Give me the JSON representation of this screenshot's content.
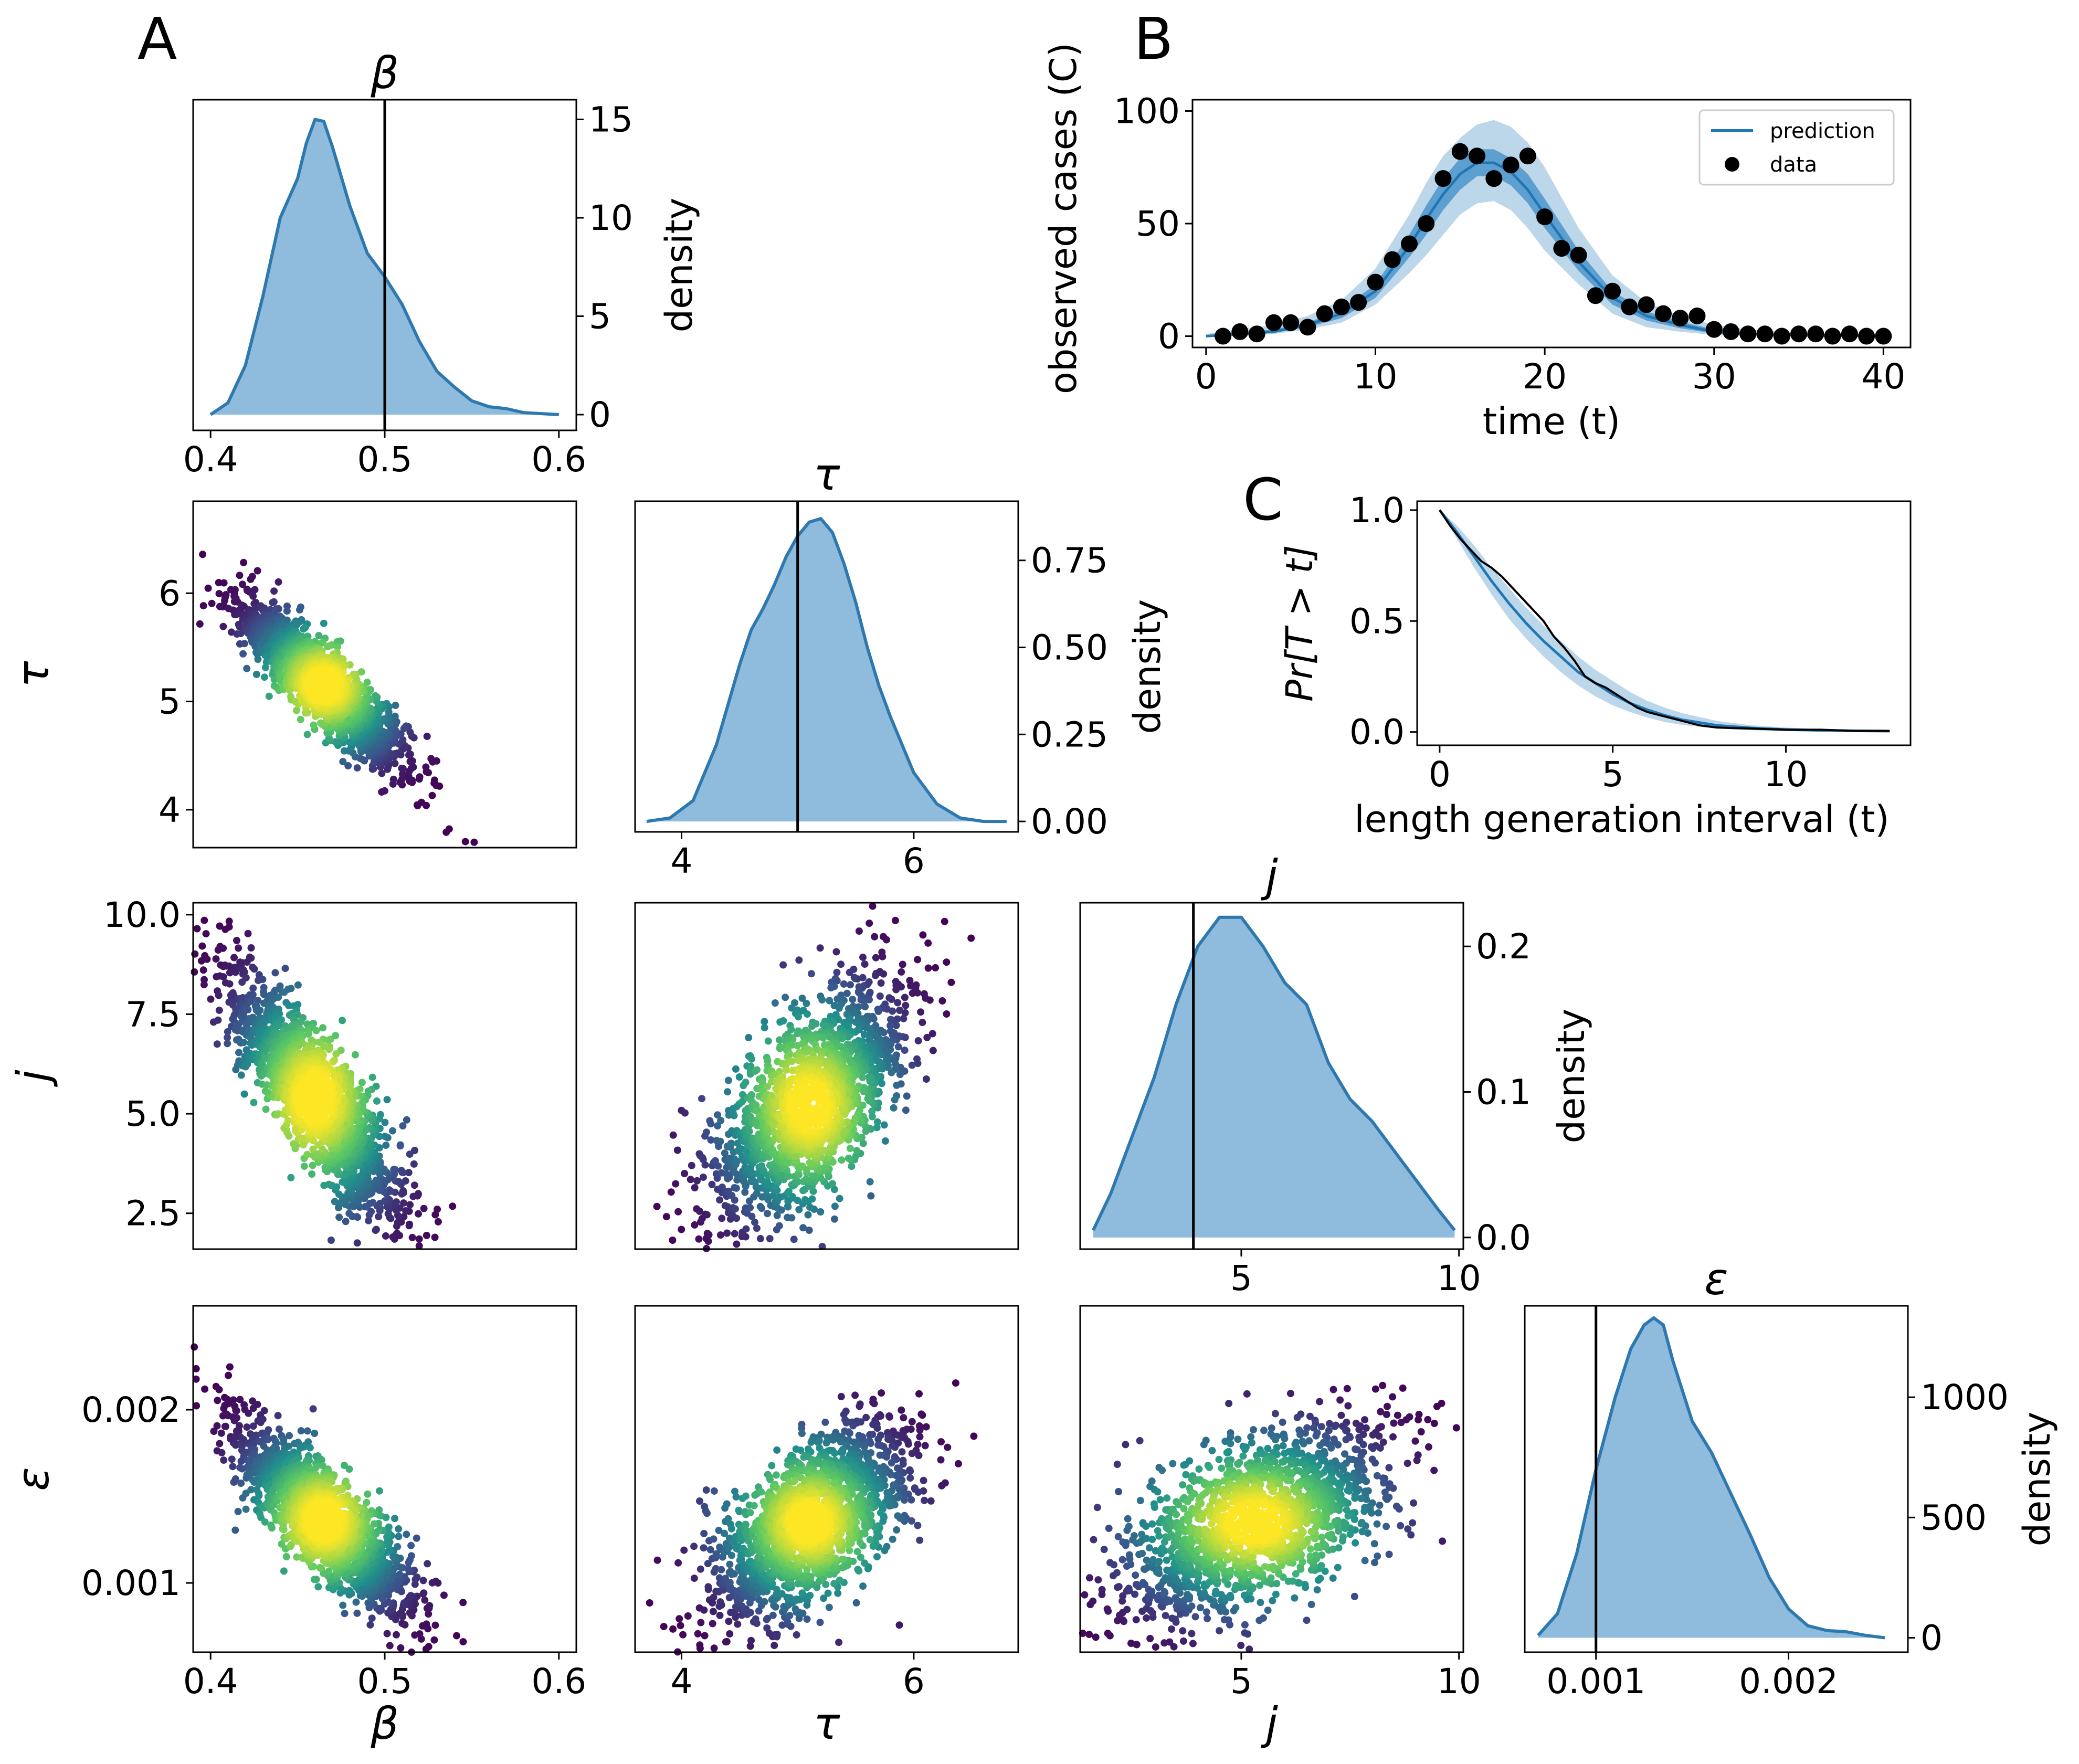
{
  "panel_labels": {
    "a": "A",
    "b": "B",
    "c": "C"
  },
  "colors": {
    "kde_line": "#2e78b0",
    "kde_fill": "#8fbbdc",
    "truth_line": "#000000",
    "band_outer": "#bcd6ea",
    "band_inner": "#5d9fd0",
    "prediction": "#1f77b4",
    "data_points": "#000000",
    "scatter_colormap": "viridis"
  },
  "chart_data": [
    {
      "id": "kde-beta",
      "type": "area",
      "title": "β",
      "ylabel": "density",
      "xlim": [
        0.39,
        0.61
      ],
      "ylim": [
        -0.8,
        16
      ],
      "xticks": [
        "0.4",
        "0.5",
        "0.6"
      ],
      "yticks": [
        "0",
        "5",
        "10",
        "15"
      ],
      "truth": 0.5,
      "x": [
        0.4,
        0.41,
        0.42,
        0.43,
        0.44,
        0.45,
        0.455,
        0.46,
        0.465,
        0.47,
        0.48,
        0.49,
        0.5,
        0.51,
        0.52,
        0.53,
        0.54,
        0.55,
        0.56,
        0.57,
        0.58,
        0.59,
        0.6
      ],
      "y": [
        0.0,
        0.6,
        2.5,
        6.0,
        10.0,
        12.0,
        13.8,
        15.0,
        14.9,
        13.6,
        10.6,
        8.2,
        7.0,
        5.6,
        3.7,
        2.2,
        1.4,
        0.7,
        0.4,
        0.3,
        0.1,
        0.05,
        0.0
      ]
    },
    {
      "id": "kde-tau",
      "type": "area",
      "title": "τ",
      "ylabel": "density",
      "xlim": [
        3.6,
        6.9
      ],
      "ylim": [
        -0.03,
        0.92
      ],
      "xticks": [
        "4",
        "6"
      ],
      "yticks": [
        "0.00",
        "0.25",
        "0.50",
        "0.75"
      ],
      "truth": 5.0,
      "x": [
        3.7,
        3.9,
        4.1,
        4.3,
        4.5,
        4.6,
        4.7,
        4.8,
        4.9,
        5.0,
        5.1,
        5.2,
        5.3,
        5.4,
        5.5,
        5.6,
        5.7,
        5.8,
        6.0,
        6.2,
        6.4,
        6.6,
        6.8
      ],
      "y": [
        0.0,
        0.01,
        0.06,
        0.22,
        0.45,
        0.55,
        0.61,
        0.68,
        0.76,
        0.82,
        0.86,
        0.87,
        0.83,
        0.74,
        0.63,
        0.5,
        0.39,
        0.3,
        0.14,
        0.05,
        0.01,
        0.0,
        0.0
      ]
    },
    {
      "id": "kde-j",
      "type": "area",
      "title": "j",
      "ylabel": "density",
      "xlim": [
        1.3,
        10.1
      ],
      "ylim": [
        -0.008,
        0.23
      ],
      "xticks": [
        "5",
        "10"
      ],
      "yticks": [
        "0.0",
        "0.1",
        "0.2"
      ],
      "truth": 3.9,
      "x": [
        1.6,
        2.0,
        2.5,
        3.0,
        3.5,
        4.0,
        4.5,
        5.0,
        5.5,
        6.0,
        6.5,
        7.0,
        7.5,
        8.0,
        8.5,
        9.0,
        9.5,
        9.9
      ],
      "y": [
        0.005,
        0.03,
        0.07,
        0.11,
        0.16,
        0.2,
        0.22,
        0.22,
        0.2,
        0.175,
        0.16,
        0.12,
        0.095,
        0.08,
        0.06,
        0.04,
        0.02,
        0.005
      ]
    },
    {
      "id": "kde-eps",
      "type": "area",
      "title": "ε",
      "ylabel": "density",
      "xlim": [
        0.00063,
        0.00262
      ],
      "ylim": [
        -60,
        1380
      ],
      "xticks": [
        "0.001",
        "0.002"
      ],
      "yticks": [
        "0",
        "500",
        "1000"
      ],
      "truth": 0.001,
      "x": [
        0.0007,
        0.0008,
        0.0009,
        0.001,
        0.0011,
        0.00118,
        0.00125,
        0.0013,
        0.00135,
        0.0014,
        0.0015,
        0.0016,
        0.0017,
        0.0018,
        0.0019,
        0.002,
        0.0021,
        0.0022,
        0.0023,
        0.0024,
        0.0025
      ],
      "y": [
        10,
        100,
        350,
        700,
        1000,
        1200,
        1300,
        1330,
        1300,
        1150,
        900,
        770,
        600,
        430,
        250,
        120,
        50,
        30,
        25,
        10,
        0
      ]
    },
    {
      "id": "scatter-beta-tau",
      "type": "scatter",
      "ylabel": "τ",
      "xlim": [
        0.39,
        0.61
      ],
      "ylim": [
        3.65,
        6.85
      ],
      "yticks": [
        "4",
        "5",
        "6"
      ],
      "center": [
        0.465,
        5.15
      ],
      "sd": [
        0.024,
        0.38
      ],
      "corr": -0.88
    },
    {
      "id": "scatter-beta-j",
      "type": "scatter",
      "ylabel": "j",
      "xlim": [
        0.39,
        0.61
      ],
      "ylim": [
        1.6,
        10.3
      ],
      "yticks": [
        "2.5",
        "5.0",
        "7.5",
        "10.0"
      ],
      "center": [
        0.46,
        5.4
      ],
      "sd": [
        0.026,
        1.6
      ],
      "corr": -0.85
    },
    {
      "id": "scatter-tau-j",
      "type": "scatter",
      "xlim": [
        3.6,
        6.9
      ],
      "ylim": [
        1.6,
        10.3
      ],
      "center": [
        5.1,
        5.2
      ],
      "sd": [
        0.42,
        1.55
      ],
      "corr": 0.65
    },
    {
      "id": "scatter-beta-eps",
      "type": "scatter",
      "xlabel": "β",
      "ylabel": "ε",
      "xlim": [
        0.39,
        0.61
      ],
      "ylim": [
        0.0006,
        0.0026
      ],
      "xticks": [
        "0.4",
        "0.5",
        "0.6"
      ],
      "yticks": [
        "0.001",
        "0.002"
      ],
      "center": [
        0.465,
        0.00136
      ],
      "sd": [
        0.026,
        0.00028
      ],
      "corr": -0.82
    },
    {
      "id": "scatter-tau-eps",
      "type": "scatter",
      "xlabel": "τ",
      "xlim": [
        3.6,
        6.9
      ],
      "ylim": [
        0.0006,
        0.0026
      ],
      "xticks": [
        "4",
        "6"
      ],
      "center": [
        5.1,
        0.00135
      ],
      "sd": [
        0.42,
        0.00028
      ],
      "corr": 0.62
    },
    {
      "id": "scatter-j-eps",
      "type": "scatter",
      "xlabel": "j",
      "xlim": [
        1.3,
        10.1
      ],
      "ylim": [
        0.0006,
        0.0026
      ],
      "xticks": [
        "5",
        "10"
      ],
      "center": [
        5.3,
        0.00135
      ],
      "sd": [
        1.55,
        0.00028
      ],
      "corr": 0.55
    },
    {
      "id": "timeseries",
      "type": "line",
      "xlabel": "time (t)",
      "ylabel": "observed cases (C)",
      "xlim": [
        -0.8,
        41.6
      ],
      "ylim": [
        -5,
        105
      ],
      "xticks": [
        "0",
        "10",
        "20",
        "30",
        "40"
      ],
      "yticks": [
        "0",
        "50",
        "100"
      ],
      "legend": {
        "position": "top-right",
        "prediction": "prediction",
        "data": "data"
      },
      "data_x": [
        1,
        2,
        3,
        4,
        5,
        6,
        7,
        8,
        9,
        10,
        11,
        12,
        13,
        14,
        15,
        16,
        17,
        18,
        19,
        20,
        21,
        22,
        23,
        24,
        25,
        26,
        27,
        28,
        29,
        30,
        31,
        32,
        33,
        34,
        35,
        36,
        37,
        38,
        39,
        40
      ],
      "data_y": [
        0,
        2,
        1,
        6,
        6,
        4,
        10,
        13,
        15,
        24,
        34,
        41,
        50,
        70,
        82,
        80,
        70,
        76,
        80,
        53,
        39,
        36,
        18,
        20,
        13,
        14,
        10,
        8,
        9,
        3,
        2,
        1,
        1,
        0,
        1,
        1,
        0,
        1,
        0,
        0
      ],
      "pred_x": [
        0,
        2,
        4,
        6,
        8,
        10,
        12,
        13,
        14,
        15,
        16,
        17,
        18,
        19,
        20,
        22,
        24,
        26,
        28,
        30,
        32,
        34,
        36,
        38,
        40
      ],
      "pred_mean": [
        0,
        1,
        2,
        5,
        10,
        20,
        40,
        52,
        63,
        72,
        77,
        77,
        73,
        65,
        54,
        33,
        17,
        9,
        5,
        2,
        1,
        0.5,
        0.3,
        0.2,
        0.1
      ],
      "inner_lo": [
        0,
        0.5,
        1.5,
        4,
        8,
        17,
        35,
        45,
        56,
        65,
        71,
        71,
        67,
        59,
        48,
        29,
        14,
        7,
        3.5,
        1.2,
        0.5,
        0.2,
        0.1,
        0,
        0
      ],
      "inner_hi": [
        0.5,
        1.5,
        3,
        6,
        12,
        23,
        45,
        58,
        70,
        79,
        83,
        83,
        79,
        72,
        61,
        38,
        20,
        11,
        6.5,
        3,
        1.5,
        0.8,
        0.5,
        0.3,
        0.2
      ],
      "outer_lo": [
        0,
        0,
        1,
        3,
        6,
        14,
        28,
        36,
        45,
        54,
        59,
        60,
        56,
        48,
        38,
        23,
        10,
        4,
        2,
        0.5,
        0,
        0,
        0,
        0,
        0
      ],
      "outer_hi": [
        1,
        3,
        5,
        9,
        16,
        30,
        54,
        68,
        80,
        88,
        94,
        96,
        93,
        86,
        75,
        48,
        27,
        15,
        9,
        5,
        3,
        2,
        1,
        0.5,
        0.3
      ]
    },
    {
      "id": "survival",
      "type": "line",
      "xlabel": "length generation interval (t)",
      "ylabel": "Pr[T > t]",
      "xlim": [
        -0.65,
        13.6
      ],
      "ylim": [
        -0.06,
        1.04
      ],
      "xticks": [
        "0",
        "5",
        "10"
      ],
      "yticks": [
        "0.0",
        "0.5",
        "1.0"
      ],
      "pred_x": [
        0,
        0.5,
        1,
        1.5,
        2,
        2.5,
        3,
        3.5,
        4,
        4.5,
        5,
        5.5,
        6,
        6.5,
        7,
        8,
        9,
        10,
        11,
        12,
        13
      ],
      "pred_mean": [
        1.0,
        0.9,
        0.79,
        0.68,
        0.58,
        0.49,
        0.41,
        0.34,
        0.27,
        0.22,
        0.17,
        0.13,
        0.1,
        0.075,
        0.055,
        0.03,
        0.018,
        0.011,
        0.007,
        0.005,
        0.004
      ],
      "band_lo": [
        1.0,
        0.87,
        0.74,
        0.62,
        0.51,
        0.42,
        0.34,
        0.27,
        0.21,
        0.16,
        0.12,
        0.09,
        0.065,
        0.045,
        0.032,
        0.016,
        0.008,
        0.004,
        0.002,
        0.001,
        0.001
      ],
      "band_hi": [
        1.0,
        0.93,
        0.84,
        0.74,
        0.65,
        0.56,
        0.48,
        0.41,
        0.34,
        0.28,
        0.23,
        0.18,
        0.14,
        0.11,
        0.085,
        0.05,
        0.03,
        0.02,
        0.013,
        0.009,
        0.007
      ],
      "empirical_x": [
        0,
        0.3,
        0.6,
        0.9,
        1.2,
        1.5,
        1.8,
        2.1,
        2.4,
        2.7,
        3.0,
        3.3,
        3.6,
        3.9,
        4.2,
        4.5,
        4.8,
        5.1,
        5.4,
        5.7,
        6.0,
        6.5,
        7.0,
        7.5,
        8.0,
        9.0,
        10.0,
        11.0,
        12.0,
        13.0
      ],
      "empirical_y": [
        1.0,
        0.93,
        0.87,
        0.82,
        0.77,
        0.74,
        0.7,
        0.65,
        0.6,
        0.55,
        0.5,
        0.43,
        0.38,
        0.32,
        0.25,
        0.22,
        0.2,
        0.17,
        0.14,
        0.11,
        0.09,
        0.07,
        0.05,
        0.03,
        0.02,
        0.015,
        0.01,
        0.01,
        0.005,
        0.005
      ]
    }
  ]
}
